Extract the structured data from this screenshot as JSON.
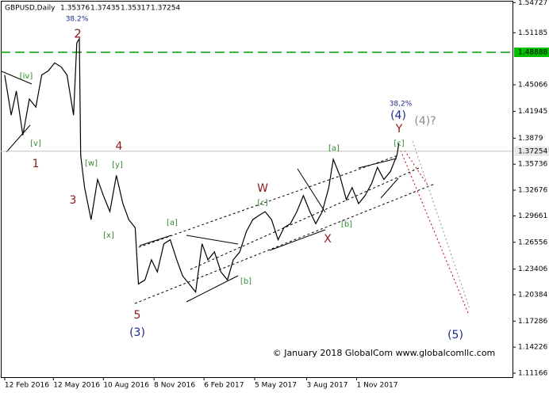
{
  "chart_data": {
    "type": "line",
    "title": "GBPUSD,Daily",
    "ohlc": [
      1.35376,
      1.37435,
      1.35317,
      1.37254
    ],
    "color": "#000000",
    "x": [
      0.0,
      1.0,
      1.8,
      2.8,
      3.8,
      4.8,
      5.7,
      6.7,
      7.7,
      8.7,
      9.6,
      10.6,
      11.1,
      11.5,
      11.7,
      12.3,
      13.3,
      14.3,
      15.2,
      16.2,
      17.2,
      18.2,
      19.1,
      20.1,
      20.6,
      21.6,
      22.6,
      23.5,
      24.5,
      25.5,
      26.5,
      27.4,
      28.4,
      29.4,
      30.4,
      31.3,
      32.3,
      33.3,
      34.3,
      35.2,
      36.2,
      37.2,
      38.2,
      39.1,
      40.1,
      41.1,
      42.1,
      43.0,
      44.0,
      45.0,
      46.0,
      47.0,
      47.9,
      48.9,
      49.9,
      50.6,
      51.6,
      52.6,
      53.5,
      54.5,
      55.5,
      56.5,
      57.4,
      58.4,
      59.4,
      60.4,
      60.7
    ],
    "values": [
      1.4622,
      1.415,
      1.4433,
      1.3914,
      1.4339,
      1.4244,
      1.4622,
      1.467,
      1.4764,
      1.4717,
      1.4622,
      1.415,
      1.5,
      1.5048,
      1.3677,
      1.3299,
      1.2922,
      1.3394,
      1.3205,
      1.3016,
      1.3441,
      1.311,
      1.2922,
      1.2827,
      1.2165,
      1.2213,
      1.2449,
      1.2307,
      1.2638,
      1.2685,
      1.2449,
      1.226,
      1.2165,
      1.2071,
      1.2638,
      1.2449,
      1.2543,
      1.2307,
      1.2213,
      1.2449,
      1.2543,
      1.2779,
      1.2922,
      1.2969,
      1.3016,
      1.2922,
      1.2685,
      1.2827,
      1.2874,
      1.3016,
      1.3205,
      1.3016,
      1.2874,
      1.3016,
      1.3299,
      1.363,
      1.3441,
      1.3157,
      1.3299,
      1.311,
      1.3205,
      1.3346,
      1.3536,
      1.3394,
      1.3488,
      1.3677,
      1.3819
    ],
    "xlim": [
      -0.6,
      78.2
    ],
    "xticks": [
      {
        "value": 0,
        "label": "12 Feb 2016"
      },
      {
        "value": 7.5,
        "label": "12 May 2016"
      },
      {
        "value": 15.2,
        "label": "10 Aug 2016"
      },
      {
        "value": 23,
        "label": "8 Nov 2016"
      },
      {
        "value": 30.7,
        "label": "6 Feb 2017"
      },
      {
        "value": 38.5,
        "label": "5 May 2017"
      },
      {
        "value": 46.5,
        "label": "3 Aug 2017"
      },
      {
        "value": 54.2,
        "label": "1 Nov 2017"
      }
    ],
    "ylim": [
      1.107,
      1.55035
    ],
    "yticks": [
      1.54727,
      1.51185,
      1.45066,
      1.41945,
      1.3879,
      1.35736,
      1.32676,
      1.29661,
      1.26556,
      1.23406,
      1.20384,
      1.17286,
      1.14226,
      1.11166
    ],
    "levels": [
      {
        "value": 1.48888,
        "color": "#00a000",
        "box": "#00c000"
      },
      {
        "value": 1.37254,
        "color": "#c0c0c0",
        "box": "#e8e8e8"
      }
    ],
    "annotations": [
      {
        "text": "38.2%",
        "color": "#1c2a8a"
      },
      {
        "text": "2",
        "color": "#8b1a1a"
      },
      {
        "text": "[iv]",
        "color": "#2e8b2e"
      },
      {
        "text": "[v]",
        "color": "#2e8b2e"
      },
      {
        "text": "1",
        "color": "#8b1a1a"
      },
      {
        "text": "[w]",
        "color": "#2e8b2e"
      },
      {
        "text": "[y]",
        "color": "#2e8b2e"
      },
      {
        "text": "4",
        "color": "#8b1a1a"
      },
      {
        "text": "3",
        "color": "#8b1a1a"
      },
      {
        "text": "[x]",
        "color": "#2e8b2e"
      },
      {
        "text": "[a]",
        "color": "#2e8b2e"
      },
      {
        "text": "5",
        "color": "#8b1a1a"
      },
      {
        "text": "(3)",
        "color": "#1c2a8a"
      },
      {
        "text": "[b]",
        "color": "#2e8b2e"
      },
      {
        "text": "W",
        "color": "#8b1a1a"
      },
      {
        "text": "[c]",
        "color": "#2e8b2e"
      },
      {
        "text": "X",
        "color": "#8b1a1a"
      },
      {
        "text": "[b]",
        "color": "#2e8b2e"
      },
      {
        "text": "[a]",
        "color": "#2e8b2e"
      },
      {
        "text": "[c]",
        "color": "#2e8b2e"
      },
      {
        "text": "Y",
        "color": "#8b1a1a"
      },
      {
        "text": "(4)",
        "color": "#1c2a8a"
      },
      {
        "text": "38,2%",
        "color": "#1c2a8a"
      },
      {
        "text": "(4)?",
        "color": "#8c8c8c"
      },
      {
        "text": "(5)",
        "color": "#1c2a8a"
      },
      {
        "text": "© January 2018 GlobalCom www.globalcomllc.com",
        "color": "#000000"
      }
    ]
  }
}
